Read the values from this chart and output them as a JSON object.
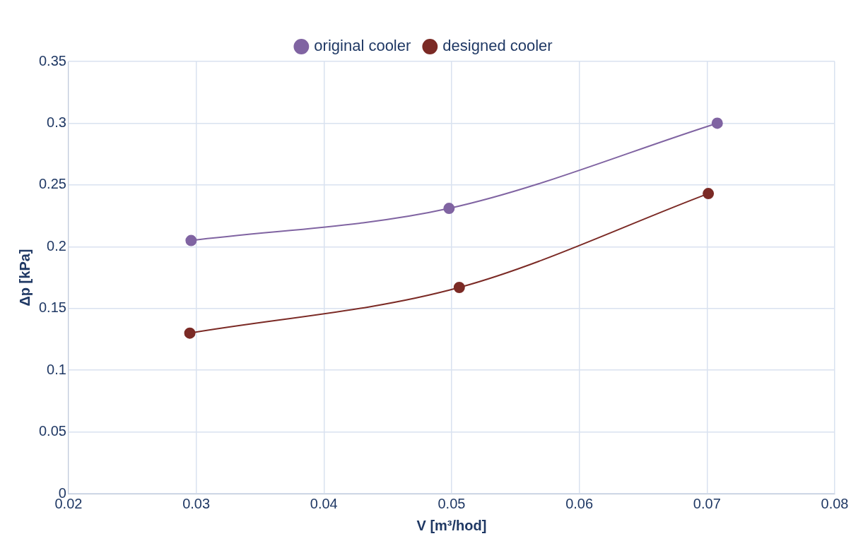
{
  "chart_data": {
    "type": "line",
    "xlabel": "V [m³/hod]",
    "ylabel": "Δp [kPa]",
    "xlim": [
      0.02,
      0.08
    ],
    "xticks": [
      0.02,
      0.03,
      0.04,
      0.05,
      0.06,
      0.07,
      0.08
    ],
    "ylim": [
      0,
      0.35
    ],
    "yticks": [
      0,
      0.05,
      0.1,
      0.15,
      0.2,
      0.25,
      0.3,
      0.35
    ],
    "grid": true,
    "legend": "top",
    "marker": "circle",
    "line_style": "solid",
    "series": [
      {
        "name": "original cooler",
        "color": "#8064a2",
        "x": [
          0.0296,
          0.0498,
          0.0708
        ],
        "values": [
          0.205,
          0.231,
          0.3
        ]
      },
      {
        "name": "designed cooler",
        "color": "#7b2a25",
        "x": [
          0.0295,
          0.0506,
          0.0701
        ],
        "values": [
          0.13,
          0.167,
          0.243
        ]
      }
    ]
  }
}
